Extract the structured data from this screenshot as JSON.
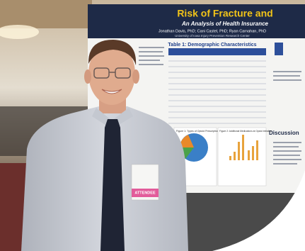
{
  "poster": {
    "title": "Risk of Fracture and",
    "subtitle": "An Analysis of Health Insurance",
    "authors": "Jonathan Davis, PhD; Cani Castel, PhD; Ryan Carnahan, PhD",
    "affiliation": "University of Iowa Injury Prevention Research Center",
    "table_title": "Table 1: Demographic Characteristics",
    "figure1_title": "Figure 1: Types of Opioid Prescriptions",
    "figure2_title": "Figure 2: Additional Medications at Opioid Initiation",
    "discussion_heading": "Discussion"
  },
  "badge": {
    "label": "ATTENDEE"
  }
}
